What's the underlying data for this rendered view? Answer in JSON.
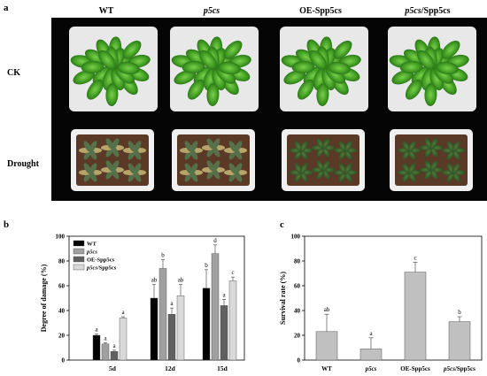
{
  "panel_a": {
    "letter": "a",
    "columns": [
      {
        "label": "WT",
        "italic": false
      },
      {
        "label": "p5cs",
        "italic": true
      },
      {
        "label": "OE-Spp5cs",
        "italic": false
      },
      {
        "label_italic_part": "p5cs",
        "label_rest": "/Spp5cs",
        "label": "p5cs/Spp5cs",
        "italic": "partial"
      }
    ],
    "rows": [
      "CK",
      "Drought"
    ]
  },
  "chart_data": [
    {
      "panel": "b",
      "type": "bar",
      "ylabel": "Degree of damage (%)",
      "ylim": [
        0,
        100
      ],
      "yticks": [
        0,
        20,
        40,
        60,
        80,
        100
      ],
      "categories": [
        "5d",
        "12d",
        "15d"
      ],
      "series": [
        {
          "name": "WT",
          "color": "#000000",
          "values": [
            20,
            50,
            58
          ],
          "errors": [
            1,
            11,
            15
          ],
          "letters": [
            "a",
            "ab",
            "b"
          ]
        },
        {
          "name": "p5cs",
          "italic": true,
          "color": "#a0a0a0",
          "values": [
            13,
            74,
            86
          ],
          "errors": [
            1,
            7,
            7
          ],
          "letters": [
            "a",
            "b",
            "d"
          ]
        },
        {
          "name": "OE-Spp5cs",
          "color": "#606060",
          "values": [
            7,
            37,
            44
          ],
          "errors": [
            1,
            5,
            5
          ],
          "letters": [
            "a",
            "a",
            "a"
          ]
        },
        {
          "name": "p5cs/Spp5cs",
          "italic_part": "p5cs",
          "rest": "/Spp5cs",
          "color": "#d9d9d9",
          "values": [
            34,
            52,
            64
          ],
          "errors": [
            1,
            9,
            3
          ],
          "letters": [
            "a",
            "ab",
            "c"
          ]
        }
      ],
      "legend": "top-left"
    },
    {
      "panel": "c",
      "type": "bar",
      "ylabel": "Survival rate (%)",
      "ylim": [
        0,
        100
      ],
      "yticks": [
        0,
        20,
        40,
        60,
        80,
        100
      ],
      "categories": [
        "WT",
        "p5cs",
        "OE-Spp5cs",
        "p5cs/Spp5cs"
      ],
      "values": [
        23,
        9,
        71,
        31
      ],
      "errors": [
        14,
        9,
        8,
        4
      ],
      "letters": [
        "ab",
        "a",
        "c",
        "b"
      ],
      "color": "#c0c0c0"
    }
  ]
}
